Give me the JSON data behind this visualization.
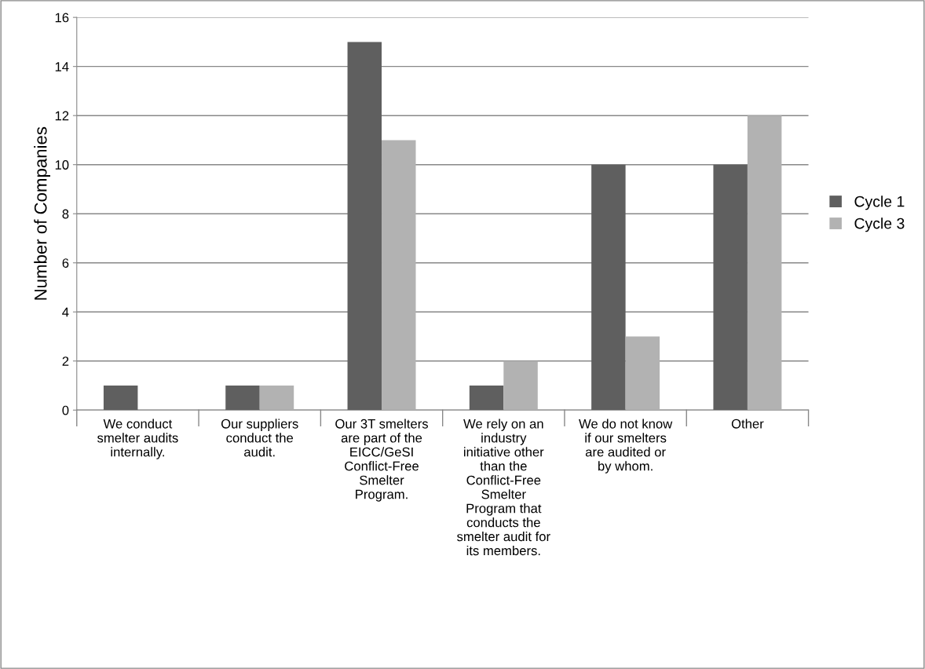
{
  "chart_data": {
    "type": "bar",
    "ylabel": "Number of Companies",
    "categories": [
      "We conduct\nsmelter audits\ninternally.",
      "Our suppliers\nconduct the\naudit.",
      "Our 3T smelters\nare part of the\nEICC/GeSI\nConflict-Free\nSmelter\nProgram.",
      "We rely on an\nindustry\ninitiative other\nthan the\nConflict-Free\nSmelter\nProgram that\nconducts the\nsmelter audit for\nits members.",
      "We do not know\nif our smelters\nare audited or\nby whom.",
      "Other"
    ],
    "series": [
      {
        "name": "Cycle 1",
        "color": "#5f5f5f",
        "values": [
          1,
          1,
          15,
          1,
          10,
          10
        ]
      },
      {
        "name": "Cycle 3",
        "color": "#b2b2b2",
        "values": [
          null,
          1,
          11,
          2,
          3,
          12
        ]
      }
    ],
    "ylim": [
      0,
      16
    ],
    "yticks": [
      0,
      2,
      4,
      6,
      8,
      10,
      12,
      14,
      16
    ],
    "grid": "y",
    "legend": "right"
  }
}
